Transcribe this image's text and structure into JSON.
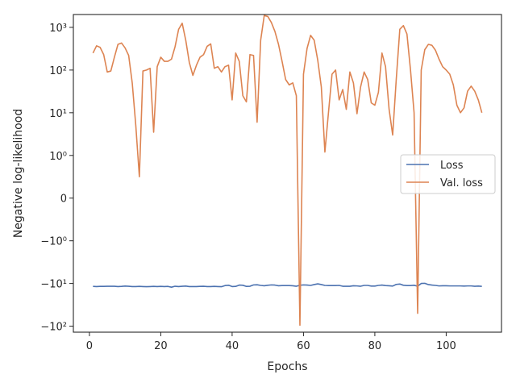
{
  "chart_data": {
    "type": "line",
    "title": "",
    "xlabel": "Epochs",
    "ylabel": "Negative log-likelihood",
    "yscale": "symlog",
    "xlim": [
      -4.5,
      115.5
    ],
    "ylim": [
      -138.2,
      2000
    ],
    "grid": false,
    "legend_position": "center right",
    "x_ticks": [
      0,
      20,
      40,
      60,
      80,
      100
    ],
    "x_tick_labels": [
      "0",
      "20",
      "40",
      "60",
      "80",
      "100"
    ],
    "y_ticks": [
      1000,
      100,
      10,
      1,
      0,
      -1,
      -10,
      -100
    ],
    "y_tick_labels": [
      "10³",
      "10²",
      "10¹",
      "10⁰",
      "0",
      "−10⁰",
      "−10¹",
      "−10²"
    ],
    "series": [
      {
        "name": "Loss",
        "color": "#4c72b0",
        "x": [
          1,
          2,
          3,
          4,
          5,
          6,
          7,
          8,
          9,
          10,
          11,
          12,
          13,
          14,
          15,
          16,
          17,
          18,
          19,
          20,
          21,
          22,
          23,
          24,
          25,
          26,
          27,
          28,
          29,
          30,
          31,
          32,
          33,
          34,
          35,
          36,
          37,
          38,
          39,
          40,
          41,
          42,
          43,
          44,
          45,
          46,
          47,
          48,
          49,
          50,
          51,
          52,
          53,
          54,
          55,
          56,
          57,
          58,
          59,
          60,
          61,
          62,
          63,
          64,
          65,
          66,
          67,
          68,
          69,
          70,
          71,
          72,
          73,
          74,
          75,
          76,
          77,
          78,
          79,
          80,
          81,
          82,
          83,
          84,
          85,
          86,
          87,
          88,
          89,
          90,
          91,
          92,
          93,
          94,
          95,
          96,
          97,
          98,
          99,
          100,
          101,
          102,
          103,
          104,
          105,
          106,
          107,
          108,
          109,
          110
        ],
        "y": [
          -11.7,
          -11.8,
          -11.7,
          -11.7,
          -11.6,
          -11.6,
          -11.6,
          -11.8,
          -11.7,
          -11.5,
          -11.6,
          -11.8,
          -11.8,
          -11.7,
          -11.8,
          -11.9,
          -11.8,
          -11.7,
          -11.8,
          -11.7,
          -11.8,
          -11.7,
          -12.2,
          -11.6,
          -11.8,
          -11.6,
          -11.5,
          -11.8,
          -11.8,
          -11.8,
          -11.7,
          -11.6,
          -11.8,
          -11.8,
          -11.7,
          -11.8,
          -11.9,
          -11.2,
          -11.0,
          -11.8,
          -11.7,
          -10.9,
          -11.0,
          -11.7,
          -11.6,
          -10.8,
          -10.7,
          -11.1,
          -11.3,
          -11.0,
          -10.8,
          -10.9,
          -11.3,
          -11.2,
          -11.2,
          -11.2,
          -11.3,
          -11.6,
          -11.0,
          -10.8,
          -10.9,
          -11.1,
          -10.6,
          -10.2,
          -10.6,
          -11.1,
          -11.2,
          -11.2,
          -11.2,
          -11.1,
          -11.6,
          -11.6,
          -11.6,
          -11.3,
          -11.4,
          -11.6,
          -11.1,
          -11.1,
          -11.5,
          -11.5,
          -11.1,
          -10.9,
          -11.2,
          -11.3,
          -11.5,
          -10.5,
          -10.3,
          -11.0,
          -11.2,
          -11.2,
          -11.0,
          -11.6,
          -10.0,
          -9.9,
          -10.6,
          -10.9,
          -11.1,
          -11.4,
          -11.3,
          -11.3,
          -11.4,
          -11.4,
          -11.4,
          -11.4,
          -11.5,
          -11.4,
          -11.4,
          -11.6,
          -11.5,
          -11.7
        ]
      },
      {
        "name": "Val. loss",
        "color": "#dd8452",
        "x": [
          1,
          2,
          3,
          4,
          5,
          6,
          7,
          8,
          9,
          10,
          11,
          12,
          13,
          14,
          15,
          16,
          17,
          18,
          19,
          20,
          21,
          22,
          23,
          24,
          25,
          26,
          27,
          28,
          29,
          30,
          31,
          32,
          33,
          34,
          35,
          36,
          37,
          38,
          39,
          40,
          41,
          42,
          43,
          44,
          45,
          46,
          47,
          48,
          49,
          50,
          51,
          52,
          53,
          54,
          55,
          56,
          57,
          58,
          59,
          60,
          61,
          62,
          63,
          64,
          65,
          66,
          67,
          68,
          69,
          70,
          71,
          72,
          73,
          74,
          75,
          76,
          77,
          78,
          79,
          80,
          81,
          82,
          83,
          84,
          85,
          86,
          87,
          88,
          89,
          90,
          91,
          92,
          93,
          94,
          95,
          96,
          97,
          98,
          99,
          100,
          101,
          102,
          103,
          104,
          105,
          106,
          107,
          108,
          109,
          110
        ],
        "y": [
          250,
          370,
          340,
          230,
          90,
          95,
          200,
          400,
          430,
          330,
          220,
          50,
          5,
          0.5,
          95,
          100,
          110,
          3.5,
          120,
          200,
          160,
          160,
          180,
          350,
          900,
          1250,
          500,
          150,
          75,
          130,
          200,
          230,
          360,
          410,
          110,
          120,
          90,
          120,
          130,
          20,
          250,
          160,
          25,
          18,
          230,
          220,
          6,
          500,
          1900,
          1800,
          1300,
          800,
          400,
          160,
          60,
          45,
          50,
          25,
          -95,
          80,
          320,
          650,
          500,
          170,
          40,
          1.2,
          10,
          80,
          100,
          20,
          35,
          12,
          90,
          50,
          9.5,
          40,
          90,
          60,
          17,
          15,
          30,
          250,
          120,
          12,
          3.0,
          60,
          900,
          1100,
          700,
          100,
          10,
          -50,
          100,
          300,
          400,
          380,
          290,
          180,
          120,
          100,
          80,
          45,
          15,
          10,
          13,
          32,
          42,
          32,
          20,
          10
        ]
      }
    ]
  }
}
